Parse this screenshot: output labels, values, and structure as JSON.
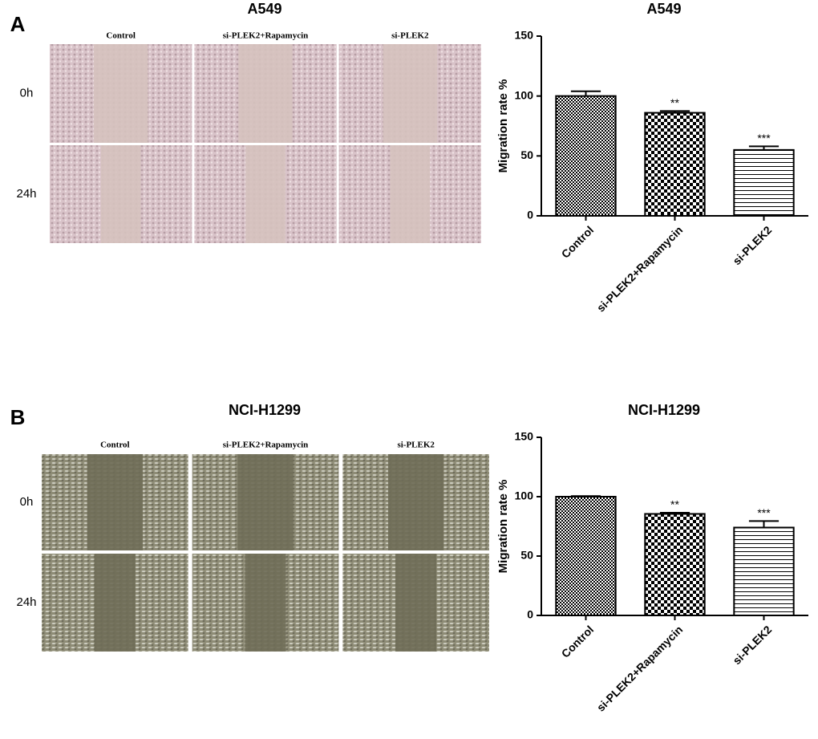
{
  "panels": [
    {
      "letter": "A",
      "title": "A549",
      "columns": [
        "Control",
        "si-PLEK2+Rapamycin",
        "si-PLEK2"
      ],
      "rows": [
        "0h",
        "24h"
      ],
      "tone": "pink"
    },
    {
      "letter": "B",
      "title": "NCI-H1299",
      "columns": [
        "Control",
        "si-PLEK2+Rapamycin",
        "si-PLEK2"
      ],
      "rows": [
        "0h",
        "24h"
      ],
      "tone": "grey"
    }
  ],
  "chart_data": [
    {
      "type": "bar",
      "title": "A549",
      "ylabel": "Migration rate %",
      "categories": [
        "Control",
        "si-PLEK2+Rapamycin",
        "si-PLEK2"
      ],
      "values": [
        100,
        86,
        55
      ],
      "errors": [
        4,
        1.5,
        3
      ],
      "significance": [
        null,
        "**",
        "***"
      ],
      "patterns": [
        "fine-check",
        "check",
        "hlines"
      ],
      "color": "#000000",
      "ylim": [
        0,
        150
      ],
      "yticks": [
        0,
        50,
        100,
        150
      ]
    },
    {
      "type": "bar",
      "title": "NCI-H1299",
      "ylabel": "Migration rate %",
      "categories": [
        "Control",
        "si-PLEK2+Rapamycin",
        "si-PLEK2"
      ],
      "values": [
        100,
        85.5,
        74
      ],
      "errors": [
        0.5,
        1,
        5.5
      ],
      "significance": [
        null,
        "**",
        "***"
      ],
      "patterns": [
        "fine-check",
        "check",
        "hlines"
      ],
      "color": "#000000",
      "ylim": [
        0,
        150
      ],
      "yticks": [
        0,
        50,
        100,
        150
      ]
    }
  ]
}
